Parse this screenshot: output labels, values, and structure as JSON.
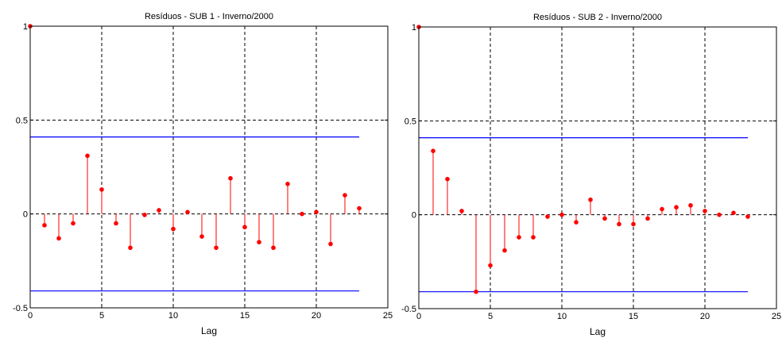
{
  "chart_data": [
    {
      "type": "stem",
      "title": "Resíduos - SUB 1 - Inverno/2000",
      "xlabel": "Lag",
      "ylabel": "",
      "xlim": [
        0,
        25
      ],
      "ylim": [
        -0.5,
        1
      ],
      "xticks": [
        "0",
        "5",
        "10",
        "15",
        "20",
        "25"
      ],
      "yticks": [
        "-0.5",
        "0",
        "0.5",
        "1"
      ],
      "grid": "dashed at x=5,10,15,20 and y=0.5,0",
      "confidence_bounds": [
        0.41,
        -0.41
      ],
      "lags": [
        0,
        1,
        2,
        3,
        4,
        5,
        6,
        7,
        8,
        9,
        10,
        11,
        12,
        13,
        14,
        15,
        16,
        17,
        18,
        19,
        20,
        21,
        22,
        23
      ],
      "values": [
        1.0,
        -0.06,
        -0.13,
        -0.05,
        0.31,
        0.13,
        -0.05,
        -0.18,
        -0.005,
        0.02,
        -0.08,
        0.01,
        -0.12,
        -0.18,
        0.19,
        -0.07,
        -0.15,
        -0.18,
        0.16,
        0.0,
        0.01,
        -0.16,
        0.1,
        0.03
      ],
      "colors": {
        "stem": "#ff0000",
        "bounds": "#0000ff",
        "grid": "#000000"
      }
    },
    {
      "type": "stem",
      "title": "Resíduos - SUB 2 - Inverno/2000",
      "xlabel": "Lag",
      "ylabel": "",
      "xlim": [
        0,
        25
      ],
      "ylim": [
        -0.5,
        1
      ],
      "xticks": [
        "0",
        "5",
        "10",
        "15",
        "20",
        "25"
      ],
      "yticks": [
        "-0.5",
        "0",
        "0.5",
        "1"
      ],
      "grid": "dashed at x=5,10,15,20 and y=0.5,0",
      "confidence_bounds": [
        0.41,
        -0.41
      ],
      "lags": [
        0,
        1,
        2,
        3,
        4,
        5,
        6,
        7,
        8,
        9,
        10,
        11,
        12,
        13,
        14,
        15,
        16,
        17,
        18,
        19,
        20,
        21,
        22,
        23
      ],
      "values": [
        1.0,
        0.34,
        0.19,
        0.02,
        -0.41,
        -0.27,
        -0.19,
        -0.12,
        -0.12,
        -0.01,
        0.0,
        -0.04,
        0.08,
        -0.02,
        -0.05,
        -0.05,
        -0.02,
        0.03,
        0.04,
        0.05,
        0.02,
        0.0,
        0.01,
        -0.01
      ],
      "colors": {
        "stem": "#ff0000",
        "bounds": "#0000ff",
        "grid": "#000000"
      }
    }
  ]
}
